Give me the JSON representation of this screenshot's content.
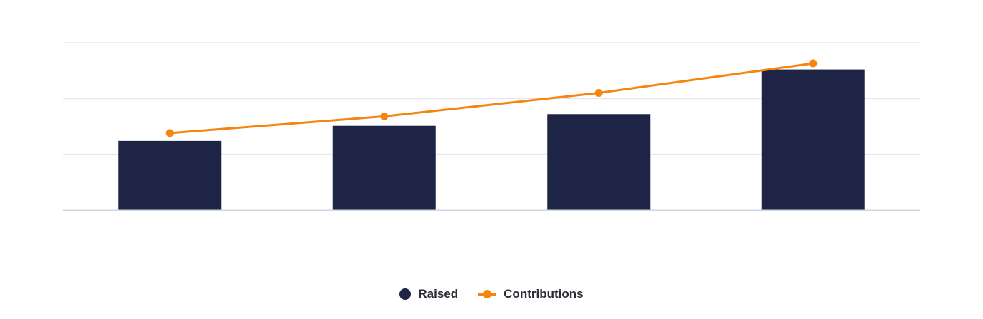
{
  "chart_data": {
    "type": "bar",
    "categories": [
      "",
      "",
      "",
      ""
    ],
    "ylim": [
      0,
      3
    ],
    "grid": true,
    "legend_position": "bottom-center",
    "series": [
      {
        "name": "Raised",
        "type": "bar",
        "color": "#1e2446",
        "values": [
          1.24,
          1.51,
          1.72,
          2.52
        ]
      },
      {
        "name": "Contributions",
        "type": "line",
        "color": "#f5850f",
        "values": [
          1.38,
          1.68,
          2.1,
          2.63
        ]
      }
    ]
  },
  "legend": {
    "raised_label": "Raised",
    "contributions_label": "Contributions"
  }
}
